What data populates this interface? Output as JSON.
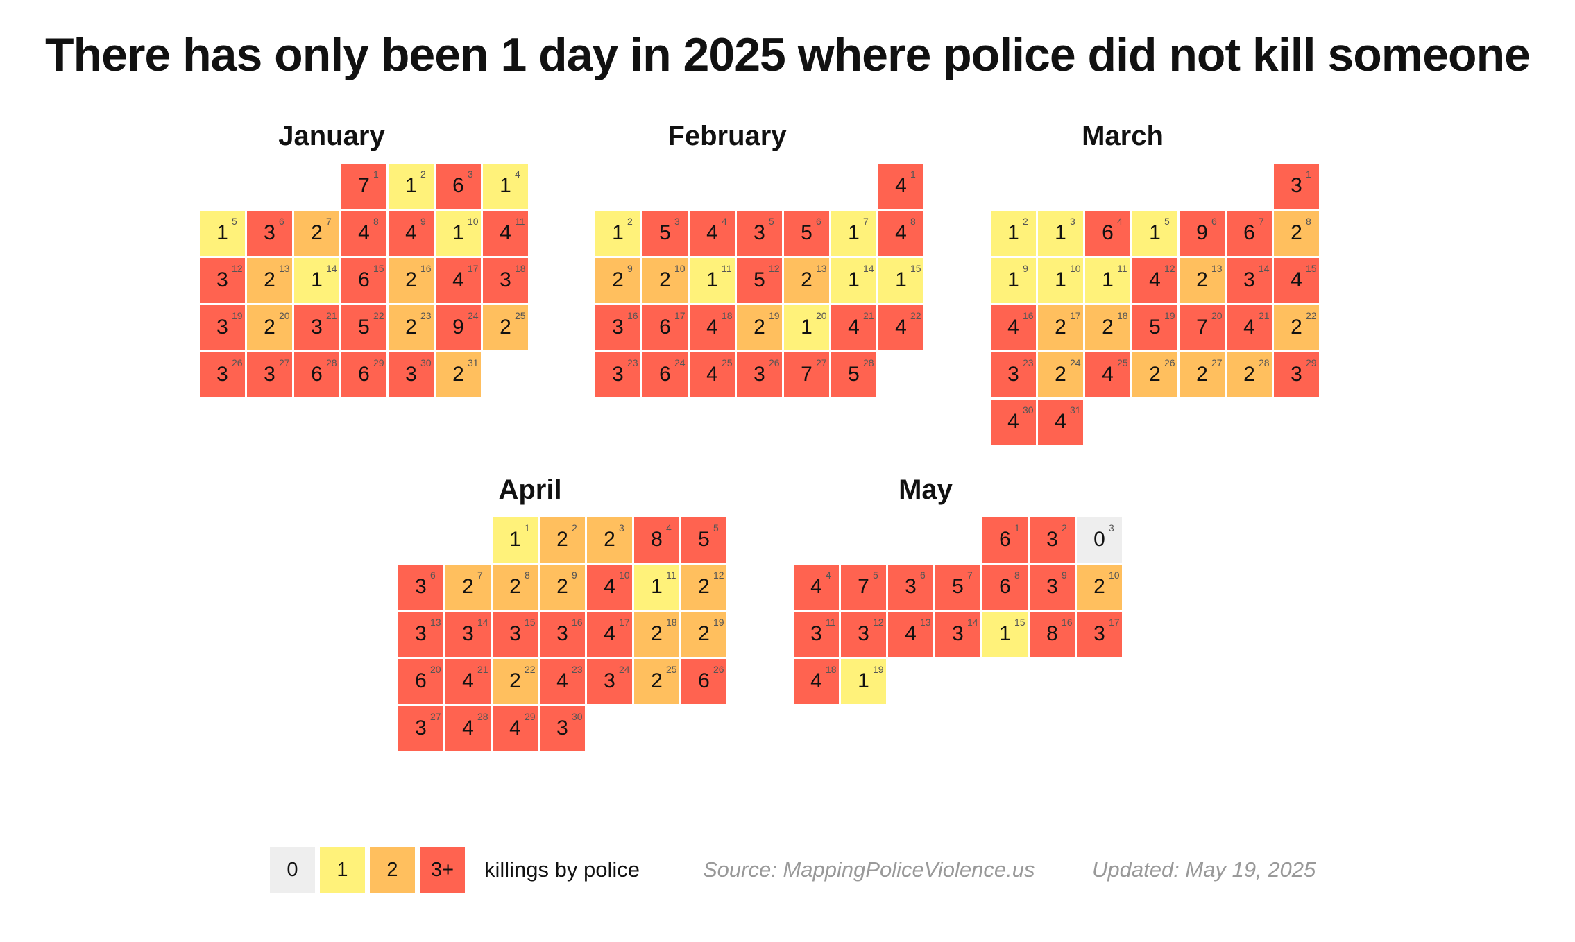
{
  "title": "There has only been 1 day in 2025 where police did not kill someone",
  "colors": {
    "0": "#eeeeee",
    "1": "#fff27a",
    "2": "#ffbf5e",
    "3plus": "#ff6350"
  },
  "legend": {
    "items": [
      {
        "label": "0",
        "color": "#eeeeee"
      },
      {
        "label": "1",
        "color": "#fff27a"
      },
      {
        "label": "2",
        "color": "#ffbf5e"
      },
      {
        "label": "3+",
        "color": "#ff6350"
      }
    ],
    "caption": "killings by police",
    "source": "Source: MappingPoliceViolence.us",
    "updated": "Updated: May 19, 2025"
  },
  "chart_data": {
    "type": "heatmap",
    "title": "There has only been 1 day in 2025 where police did not kill someone",
    "value_label": "killings by police",
    "year": 2025,
    "months": [
      {
        "name": "January",
        "first_weekday": 3,
        "values": [
          7,
          1,
          6,
          1,
          1,
          3,
          2,
          4,
          4,
          1,
          4,
          3,
          2,
          1,
          6,
          2,
          4,
          3,
          3,
          2,
          3,
          5,
          2,
          9,
          2,
          3,
          3,
          6,
          6,
          3,
          2
        ]
      },
      {
        "name": "February",
        "first_weekday": 6,
        "values": [
          4,
          1,
          5,
          4,
          3,
          5,
          1,
          4,
          2,
          2,
          1,
          5,
          2,
          1,
          1,
          3,
          6,
          4,
          2,
          1,
          4,
          4,
          3,
          6,
          4,
          3,
          7,
          5
        ]
      },
      {
        "name": "March",
        "first_weekday": 6,
        "values": [
          3,
          1,
          1,
          6,
          1,
          9,
          6,
          2,
          1,
          1,
          1,
          4,
          2,
          3,
          4,
          4,
          2,
          2,
          5,
          7,
          4,
          2,
          3,
          2,
          4,
          2,
          2,
          2,
          3,
          4,
          4
        ]
      },
      {
        "name": "April",
        "first_weekday": 2,
        "values": [
          1,
          2,
          2,
          8,
          5,
          3,
          2,
          2,
          2,
          4,
          1,
          2,
          3,
          3,
          3,
          3,
          4,
          2,
          2,
          6,
          4,
          2,
          4,
          3,
          2,
          6,
          3,
          4,
          4,
          3
        ]
      },
      {
        "name": "May",
        "first_weekday": 4,
        "values": [
          6,
          3,
          0,
          4,
          7,
          3,
          5,
          6,
          3,
          2,
          3,
          3,
          4,
          3,
          1,
          8,
          3,
          4,
          1
        ]
      }
    ]
  }
}
